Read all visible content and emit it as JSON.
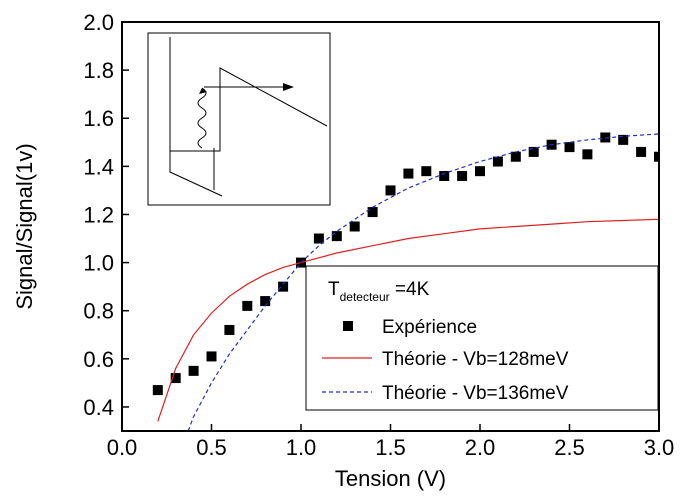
{
  "chart_data": {
    "type": "scatter",
    "xlabel": "Tension (V)",
    "ylabel": "Signal/Signal(1v)",
    "xlim": [
      0.0,
      3.0
    ],
    "ylim": [
      0.3,
      2.0
    ],
    "xticks": [
      "0.0",
      "0.5",
      "1.0",
      "1.5",
      "2.0",
      "2.5",
      "3.0"
    ],
    "yticks": [
      "0.4",
      "0.6",
      "0.8",
      "1.0",
      "1.2",
      "1.4",
      "1.6",
      "1.8",
      "2.0"
    ],
    "annotation": {
      "main": "T",
      "sub": "detecteur",
      "rest": " =4K"
    },
    "series": [
      {
        "name": "Expérience",
        "style": "square-marker",
        "color": "#000000",
        "x": [
          0.2,
          0.3,
          0.4,
          0.5,
          0.6,
          0.7,
          0.8,
          0.9,
          1.0,
          1.1,
          1.2,
          1.3,
          1.4,
          1.5,
          1.6,
          1.7,
          1.8,
          1.9,
          2.0,
          2.1,
          2.2,
          2.3,
          2.4,
          2.5,
          2.6,
          2.7,
          2.8,
          2.9,
          3.0
        ],
        "y": [
          0.47,
          0.52,
          0.55,
          0.61,
          0.72,
          0.82,
          0.84,
          0.9,
          1.0,
          1.1,
          1.11,
          1.15,
          1.21,
          1.3,
          1.37,
          1.38,
          1.36,
          1.36,
          1.38,
          1.42,
          1.44,
          1.46,
          1.49,
          1.48,
          1.45,
          1.52,
          1.51,
          1.46,
          1.44
        ]
      },
      {
        "name": "Théorie - Vb=128meV",
        "style": "solid-line",
        "color": "#e02020",
        "x": [
          0.2,
          0.3,
          0.4,
          0.5,
          0.6,
          0.7,
          0.8,
          0.9,
          1.0,
          1.2,
          1.4,
          1.6,
          1.8,
          2.0,
          2.2,
          2.4,
          2.6,
          2.8,
          3.0
        ],
        "y": [
          0.34,
          0.56,
          0.7,
          0.79,
          0.86,
          0.91,
          0.95,
          0.98,
          1.0,
          1.04,
          1.07,
          1.1,
          1.12,
          1.14,
          1.15,
          1.16,
          1.17,
          1.175,
          1.18
        ]
      },
      {
        "name": "Théorie - Vb=136meV",
        "style": "dashed-line",
        "color": "#2030c0",
        "x": [
          0.37,
          0.4,
          0.5,
          0.6,
          0.7,
          0.8,
          0.9,
          1.0,
          1.1,
          1.2,
          1.3,
          1.4,
          1.5,
          1.6,
          1.8,
          2.0,
          2.2,
          2.4,
          2.6,
          2.8,
          3.0
        ],
        "y": [
          0.3,
          0.36,
          0.5,
          0.62,
          0.72,
          0.82,
          0.91,
          1.0,
          1.07,
          1.13,
          1.18,
          1.23,
          1.27,
          1.31,
          1.37,
          1.42,
          1.46,
          1.49,
          1.51,
          1.525,
          1.535
        ]
      }
    ]
  }
}
